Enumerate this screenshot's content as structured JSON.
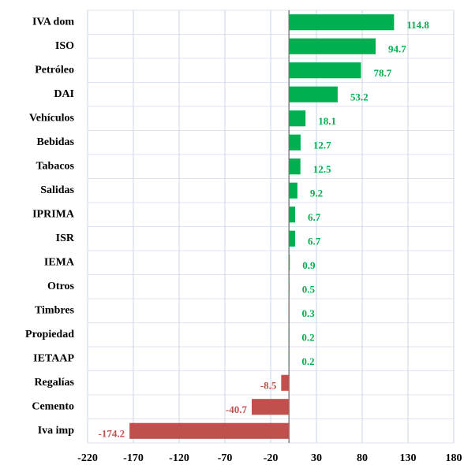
{
  "chart_data": {
    "type": "barh",
    "categories": [
      "IVA dom",
      "ISO",
      "Petróleo",
      "DAI",
      "Vehículos",
      "Bebidas",
      "Tabacos",
      "Salidas",
      "IPRIMA",
      "ISR",
      "IEMA",
      "Otros",
      "Timbres",
      "Propiedad",
      "IETAAP",
      "Regalías",
      "Cemento",
      "Iva imp"
    ],
    "values": [
      114.8,
      94.7,
      78.7,
      53.2,
      18.1,
      12.7,
      12.5,
      9.2,
      6.7,
      6.7,
      0.9,
      0.5,
      0.3,
      0.2,
      0.2,
      -8.5,
      -40.7,
      -174.2
    ],
    "positive_color": "#00b050",
    "negative_color": "#c0504d",
    "xlim": [
      -220,
      180
    ],
    "xticks": [
      -220,
      -170,
      -120,
      -70,
      -20,
      30,
      80,
      130,
      180
    ],
    "grid": true
  }
}
